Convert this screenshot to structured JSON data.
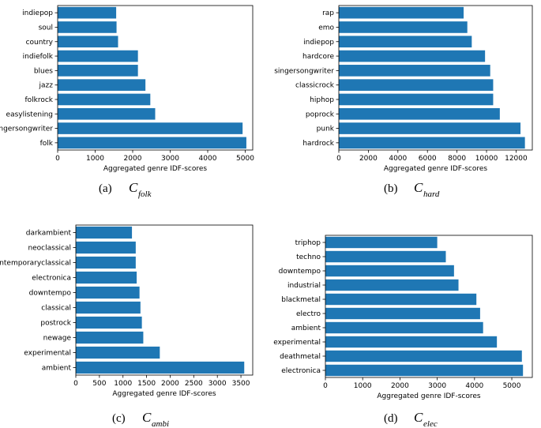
{
  "chart_data": [
    {
      "type": "bar",
      "orientation": "horizontal",
      "caption_label": "(a)",
      "caption_symbol": "C",
      "caption_subscript": "folk",
      "xlabel": "Aggregated genre IDF-scores",
      "ylabel": "",
      "xlim": [
        0,
        5200
      ],
      "xticks": [
        0,
        1000,
        2000,
        3000,
        4000,
        5000
      ],
      "categories": [
        "folk",
        "singersongwriter",
        "easylistening",
        "folkrock",
        "jazz",
        "blues",
        "indiefolk",
        "country",
        "soul",
        "indiepop"
      ],
      "values": [
        5030,
        4930,
        2600,
        2470,
        2340,
        2140,
        2140,
        1610,
        1570,
        1560
      ],
      "color": "#1f77b4"
    },
    {
      "type": "bar",
      "orientation": "horizontal",
      "caption_label": "(b)",
      "caption_symbol": "C",
      "caption_subscript": "hard",
      "xlabel": "Aggregated genre IDF-scores",
      "ylabel": "",
      "xlim": [
        0,
        13100
      ],
      "xticks": [
        0,
        2000,
        4000,
        6000,
        8000,
        10000,
        12000
      ],
      "categories": [
        "hardrock",
        "punk",
        "poprock",
        "hiphop",
        "classicrock",
        "singersongwriter",
        "hardcore",
        "indiepop",
        "emo",
        "rap"
      ],
      "values": [
        12600,
        12300,
        10900,
        10450,
        10450,
        10250,
        9900,
        9000,
        8700,
        8450
      ],
      "color": "#1f77b4"
    },
    {
      "type": "bar",
      "orientation": "horizontal",
      "caption_label": "(c)",
      "caption_symbol": "C",
      "caption_subscript": "ambi",
      "xlabel": "Aggregated genre IDF-scores",
      "ylabel": "",
      "xlim": [
        0,
        3750
      ],
      "xticks": [
        0,
        500,
        1000,
        1500,
        2000,
        2500,
        3000,
        3500
      ],
      "categories": [
        "ambient",
        "experimental",
        "newage",
        "postrock",
        "classical",
        "downtempo",
        "electronica",
        "contemporaryclassical",
        "neoclassical",
        "darkambient"
      ],
      "values": [
        3570,
        1780,
        1430,
        1400,
        1370,
        1350,
        1290,
        1270,
        1270,
        1190
      ],
      "color": "#1f77b4"
    },
    {
      "type": "bar",
      "orientation": "horizontal",
      "caption_label": "(d)",
      "caption_symbol": "C",
      "caption_subscript": "elec",
      "xlabel": "Aggregated genre IDF-scores",
      "ylabel": "",
      "xlim": [
        0,
        5550
      ],
      "xticks": [
        0,
        1000,
        2000,
        3000,
        4000,
        5000
      ],
      "categories": [
        "electronica",
        "deathmetal",
        "experimental",
        "ambient",
        "electro",
        "blackmetal",
        "industrial",
        "downtempo",
        "techno",
        "triphop"
      ],
      "values": [
        5300,
        5270,
        4600,
        4230,
        4150,
        4050,
        3570,
        3450,
        3230,
        3000
      ],
      "color": "#1f77b4"
    }
  ]
}
